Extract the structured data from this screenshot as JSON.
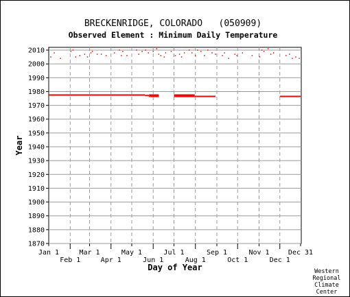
{
  "chart_data": {
    "type": "scatter",
    "title": "BRECKENRIDGE, COLORADO   (050909)",
    "subtitle": "Observed Element : Minimum Daily Temperature",
    "xlabel": "Day of Year",
    "ylabel": "Year",
    "xlim": [
      1,
      366
    ],
    "ylim": [
      1870,
      2012
    ],
    "x_ticks_top_row": [
      {
        "label": "Jan 1",
        "day": 1
      },
      {
        "label": "Mar 1",
        "day": 60
      },
      {
        "label": "May 1",
        "day": 121
      },
      {
        "label": "Jul 1",
        "day": 182
      },
      {
        "label": "Sep 1",
        "day": 244
      },
      {
        "label": "Nov 1",
        "day": 305
      },
      {
        "label": "Dec 31",
        "day": 365
      }
    ],
    "x_ticks_bottom_row": [
      {
        "label": "Feb 1",
        "day": 32
      },
      {
        "label": "Apr 1",
        "day": 91
      },
      {
        "label": "Jun 1",
        "day": 152
      },
      {
        "label": "Aug 1",
        "day": 213
      },
      {
        "label": "Oct 1",
        "day": 274
      },
      {
        "label": "Dec 1",
        "day": 335
      }
    ],
    "y_ticks": [
      1870,
      1880,
      1890,
      1900,
      1910,
      1920,
      1930,
      1940,
      1950,
      1960,
      1970,
      1980,
      1990,
      2000,
      2010
    ],
    "grid": true,
    "vertical_grid_style": "dashed",
    "series_color": "#ff0000",
    "observed_ranges": [
      {
        "day_start": 1,
        "day_end": 140,
        "year_start": 1977,
        "year_end": 1978
      },
      {
        "day_start": 140,
        "day_end": 146,
        "year_start": 1977,
        "year_end": 1977.6
      },
      {
        "day_start": 146,
        "day_end": 160,
        "year_start": 1976,
        "year_end": 1978
      },
      {
        "day_start": 182,
        "day_end": 212,
        "year_start": 1976,
        "year_end": 1978
      },
      {
        "day_start": 212,
        "day_end": 242,
        "year_start": 1976,
        "year_end": 1977
      },
      {
        "day_start": 335,
        "day_end": 365,
        "year_start": 1976,
        "year_end": 1977
      }
    ],
    "observed_points": [
      {
        "day": 4,
        "year": 2005
      },
      {
        "day": 9,
        "year": 2008
      },
      {
        "day": 18,
        "year": 2004
      },
      {
        "day": 33,
        "year": 2009
      },
      {
        "day": 36,
        "year": 2010
      },
      {
        "day": 40,
        "year": 2005
      },
      {
        "day": 46,
        "year": 2006
      },
      {
        "day": 53,
        "year": 2007
      },
      {
        "day": 57,
        "year": 2005
      },
      {
        "day": 62,
        "year": 2008
      },
      {
        "day": 64,
        "year": 2009
      },
      {
        "day": 71,
        "year": 2007
      },
      {
        "day": 77,
        "year": 2007
      },
      {
        "day": 84,
        "year": 2006
      },
      {
        "day": 96,
        "year": 2008
      },
      {
        "day": 103,
        "year": 2010
      },
      {
        "day": 106,
        "year": 2006
      },
      {
        "day": 108,
        "year": 2009
      },
      {
        "day": 114,
        "year": 2006
      },
      {
        "day": 128,
        "year": 2010
      },
      {
        "day": 131,
        "year": 2007
      },
      {
        "day": 136,
        "year": 2009
      },
      {
        "day": 141,
        "year": 2010
      },
      {
        "day": 145,
        "year": 2008
      },
      {
        "day": 152,
        "year": 2009
      },
      {
        "day": 157,
        "year": 2011
      },
      {
        "day": 160,
        "year": 2007
      },
      {
        "day": 163,
        "year": 2006
      },
      {
        "day": 168,
        "year": 2005
      },
      {
        "day": 170,
        "year": 2008
      },
      {
        "day": 178,
        "year": 2009
      },
      {
        "day": 184,
        "year": 2006
      },
      {
        "day": 190,
        "year": 2007
      },
      {
        "day": 193,
        "year": 2005
      },
      {
        "day": 197,
        "year": 2008
      },
      {
        "day": 204,
        "year": 2010
      },
      {
        "day": 208,
        "year": 2008
      },
      {
        "day": 213,
        "year": 2006
      },
      {
        "day": 216,
        "year": 2010
      },
      {
        "day": 221,
        "year": 2009
      },
      {
        "day": 226,
        "year": 2006
      },
      {
        "day": 231,
        "year": 2010
      },
      {
        "day": 237,
        "year": 2008
      },
      {
        "day": 242,
        "year": 2007
      },
      {
        "day": 252,
        "year": 2006
      },
      {
        "day": 255,
        "year": 2008
      },
      {
        "day": 261,
        "year": 2004
      },
      {
        "day": 270,
        "year": 2007
      },
      {
        "day": 273,
        "year": 2006
      },
      {
        "day": 281,
        "year": 2008
      },
      {
        "day": 295,
        "year": 2006
      },
      {
        "day": 306,
        "year": 2005
      },
      {
        "day": 309,
        "year": 2010
      },
      {
        "day": 312,
        "year": 2009
      },
      {
        "day": 318,
        "year": 2011
      },
      {
        "day": 322,
        "year": 2007
      },
      {
        "day": 326,
        "year": 2008
      },
      {
        "day": 344,
        "year": 2006
      },
      {
        "day": 349,
        "year": 2007
      },
      {
        "day": 353,
        "year": 2004
      },
      {
        "day": 358,
        "year": 2005
      },
      {
        "day": 363,
        "year": 2004
      }
    ]
  },
  "credit": [
    "Western",
    "Regional",
    "Climate",
    "Center"
  ]
}
